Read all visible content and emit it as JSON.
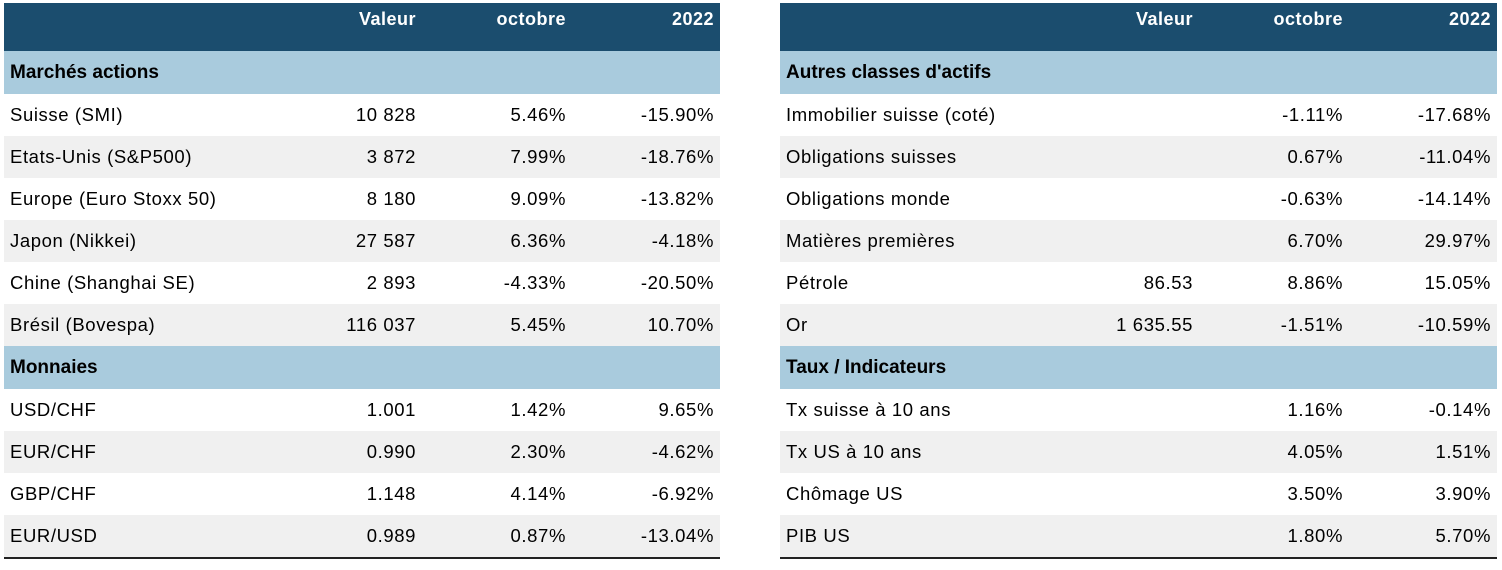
{
  "left_table": {
    "headers": [
      "",
      "Valeur",
      "octobre",
      "2022"
    ],
    "sections": [
      {
        "title": "Marchés actions",
        "rows": [
          {
            "label": "Suisse (SMI)",
            "valeur": "10 828",
            "octobre": "5.46%",
            "annee": "-15.90%"
          },
          {
            "label": "Etats-Unis (S&P500)",
            "valeur": "3 872",
            "octobre": "7.99%",
            "annee": "-18.76%"
          },
          {
            "label": "Europe (Euro Stoxx 50)",
            "valeur": "8 180",
            "octobre": "9.09%",
            "annee": "-13.82%"
          },
          {
            "label": "Japon (Nikkei)",
            "valeur": "27 587",
            "octobre": "6.36%",
            "annee": "-4.18%"
          },
          {
            "label": "Chine (Shanghai SE)",
            "valeur": "2 893",
            "octobre": "-4.33%",
            "annee": "-20.50%"
          },
          {
            "label": "Brésil (Bovespa)",
            "valeur": "116 037",
            "octobre": "5.45%",
            "annee": "10.70%"
          }
        ]
      },
      {
        "title": "Monnaies",
        "rows": [
          {
            "label": "USD/CHF",
            "valeur": "1.001",
            "octobre": "1.42%",
            "annee": "9.65%"
          },
          {
            "label": "EUR/CHF",
            "valeur": "0.990",
            "octobre": "2.30%",
            "annee": "-4.62%"
          },
          {
            "label": "GBP/CHF",
            "valeur": "1.148",
            "octobre": "4.14%",
            "annee": "-6.92%"
          },
          {
            "label": "EUR/USD",
            "valeur": "0.989",
            "octobre": "0.87%",
            "annee": "-13.04%"
          }
        ]
      }
    ]
  },
  "right_table": {
    "headers": [
      "",
      "Valeur",
      "octobre",
      "2022"
    ],
    "sections": [
      {
        "title": "Autres classes d'actifs",
        "rows": [
          {
            "label": "Immobilier suisse (coté)",
            "valeur": "",
            "octobre": "-1.11%",
            "annee": "-17.68%"
          },
          {
            "label": "Obligations suisses",
            "valeur": "",
            "octobre": "0.67%",
            "annee": "-11.04%"
          },
          {
            "label": "Obligations monde",
            "valeur": "",
            "octobre": "-0.63%",
            "annee": "-14.14%"
          },
          {
            "label": "Matières premières",
            "valeur": "",
            "octobre": "6.70%",
            "annee": "29.97%"
          },
          {
            "label": "Pétrole",
            "valeur": "86.53",
            "octobre": "8.86%",
            "annee": "15.05%"
          },
          {
            "label": "Or",
            "valeur": "1 635.55",
            "octobre": "-1.51%",
            "annee": "-10.59%"
          }
        ]
      },
      {
        "title": "Taux / Indicateurs",
        "rows": [
          {
            "label": "Tx suisse à 10 ans",
            "valeur": "",
            "octobre": "1.16%",
            "annee": "-0.14%"
          },
          {
            "label": "Tx US à 10 ans",
            "valeur": "",
            "octobre": "4.05%",
            "annee": "1.51%"
          },
          {
            "label": "Chômage US",
            "valeur": "",
            "octobre": "3.50%",
            "annee": "3.90%"
          },
          {
            "label": "PIB US",
            "valeur": "",
            "octobre": "1.80%",
            "annee": "5.70%"
          }
        ]
      }
    ]
  }
}
